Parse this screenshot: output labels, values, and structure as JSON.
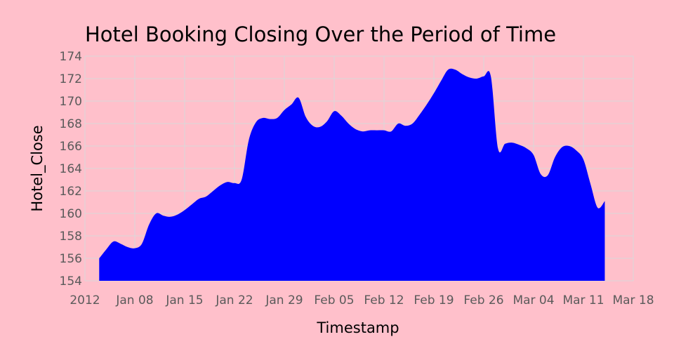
{
  "chart_data": {
    "type": "area",
    "title": "Hotel Booking Closing Over the Period of Time",
    "xlabel": "Timestamp",
    "ylabel": "Hotel_Close",
    "x_tick_labels": [
      "2012",
      "Jan 08",
      "Jan 15",
      "Jan 22",
      "Jan 29",
      "Feb 05",
      "Feb 12",
      "Feb 19",
      "Feb 26",
      "Mar 04",
      "Mar 11",
      "Mar 18"
    ],
    "x_tick_dates": [
      "2012-01-01",
      "2012-01-08",
      "2012-01-15",
      "2012-01-22",
      "2012-01-29",
      "2012-02-05",
      "2012-02-12",
      "2012-02-19",
      "2012-02-26",
      "2012-03-04",
      "2012-03-11",
      "2012-03-18"
    ],
    "y_ticks": [
      154,
      156,
      158,
      160,
      162,
      164,
      166,
      168,
      170,
      172,
      174
    ],
    "xlim": [
      "2012-01-01",
      "2012-03-18"
    ],
    "ylim": [
      154,
      174
    ],
    "grid": true,
    "fill_color": "#0000ff",
    "background_color": "#ffc0cb",
    "series": [
      {
        "x": [
          "2012-01-03",
          "2012-01-04",
          "2012-01-05",
          "2012-01-06",
          "2012-01-07",
          "2012-01-08",
          "2012-01-09",
          "2012-01-10",
          "2012-01-11",
          "2012-01-12",
          "2012-01-13",
          "2012-01-14",
          "2012-01-15",
          "2012-01-16",
          "2012-01-17",
          "2012-01-18",
          "2012-01-19",
          "2012-01-20",
          "2012-01-21",
          "2012-01-22",
          "2012-01-23",
          "2012-01-24",
          "2012-01-25",
          "2012-01-26",
          "2012-01-27",
          "2012-01-28",
          "2012-01-29",
          "2012-01-30",
          "2012-01-31",
          "2012-02-01",
          "2012-02-02",
          "2012-02-03",
          "2012-02-04",
          "2012-02-05",
          "2012-02-06",
          "2012-02-07",
          "2012-02-08",
          "2012-02-09",
          "2012-02-10",
          "2012-02-11",
          "2012-02-12",
          "2012-02-13",
          "2012-02-14",
          "2012-02-15",
          "2012-02-16",
          "2012-02-17",
          "2012-02-18",
          "2012-02-19",
          "2012-02-20",
          "2012-02-21",
          "2012-02-22",
          "2012-02-23",
          "2012-02-24",
          "2012-02-25",
          "2012-02-26",
          "2012-02-27",
          "2012-02-28",
          "2012-02-29",
          "2012-03-01",
          "2012-03-02",
          "2012-03-03",
          "2012-03-04",
          "2012-03-05",
          "2012-03-06",
          "2012-03-07",
          "2012-03-08",
          "2012-03-09",
          "2012-03-10",
          "2012-03-11",
          "2012-03-12",
          "2012-03-13",
          "2012-03-14"
        ],
        "y": [
          156.0,
          156.8,
          157.5,
          157.3,
          157.0,
          156.9,
          157.3,
          159.0,
          160.0,
          159.8,
          159.7,
          159.9,
          160.3,
          160.8,
          161.3,
          161.5,
          162.0,
          162.5,
          162.8,
          162.7,
          163.0,
          166.5,
          168.1,
          168.5,
          168.4,
          168.5,
          169.2,
          169.7,
          170.3,
          168.6,
          167.8,
          167.7,
          168.2,
          169.1,
          168.7,
          168.0,
          167.5,
          167.3,
          167.4,
          167.4,
          167.4,
          167.3,
          168.0,
          167.8,
          168.0,
          168.8,
          169.7,
          170.7,
          171.8,
          172.8,
          172.8,
          172.4,
          172.1,
          172.0,
          172.2,
          172.2,
          165.8,
          166.2,
          166.3,
          166.1,
          165.8,
          165.2,
          163.5,
          163.4,
          165.0,
          165.9,
          166.0,
          165.6,
          164.8,
          162.6,
          160.5,
          161.1
        ]
      }
    ]
  }
}
